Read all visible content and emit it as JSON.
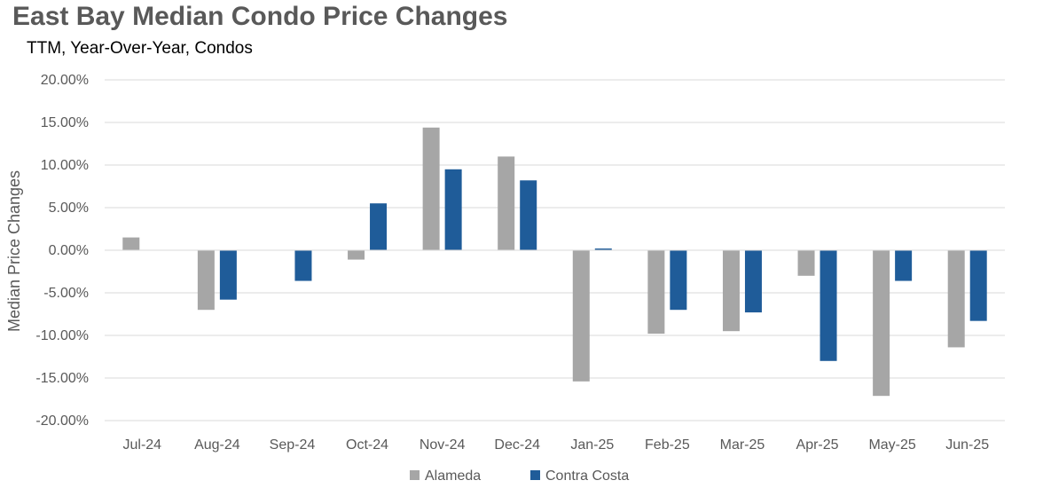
{
  "title": "East Bay Median Condo Price Changes",
  "subtitle": "TTM, Year-Over-Year,  Condos",
  "colors": {
    "alameda": "#a6a6a6",
    "contra_costa": "#1f5c99",
    "grid": "#d9d9d9",
    "text": "#595959"
  },
  "chart_data": {
    "type": "bar",
    "title": "East Bay Median Condo Price Changes",
    "subtitle": "TTM, Year-Over-Year,  Condos",
    "xlabel": "",
    "ylabel": "Median Price Changes",
    "ylim": [
      -20,
      20
    ],
    "yticks": [
      20,
      15,
      10,
      5,
      0,
      -5,
      -10,
      -15,
      -20
    ],
    "ytick_labels": [
      "20.00%",
      "15.00%",
      "10.00%",
      "5.00%",
      "0.00%",
      "-5.00%",
      "-10.00%",
      "-15.00%",
      "-20.00%"
    ],
    "grid": true,
    "legend_position": "bottom",
    "categories": [
      "Jul-24",
      "Aug-24",
      "Sep-24",
      "Oct-24",
      "Nov-24",
      "Dec-24",
      "Jan-25",
      "Feb-25",
      "Mar-25",
      "Apr-25",
      "May-25",
      "Jun-25"
    ],
    "series": [
      {
        "name": "Alameda",
        "color": "#a6a6a6",
        "values": [
          1.5,
          -7.0,
          0,
          -1.1,
          14.4,
          11.0,
          -15.4,
          -9.8,
          -9.5,
          -3.0,
          -17.1,
          -11.4
        ]
      },
      {
        "name": "Contra Costa",
        "color": "#1f5c99",
        "values": [
          0,
          -5.8,
          -3.6,
          5.5,
          9.5,
          8.2,
          0.2,
          -7.0,
          -7.3,
          -13.0,
          -3.6,
          -8.3
        ]
      }
    ]
  }
}
